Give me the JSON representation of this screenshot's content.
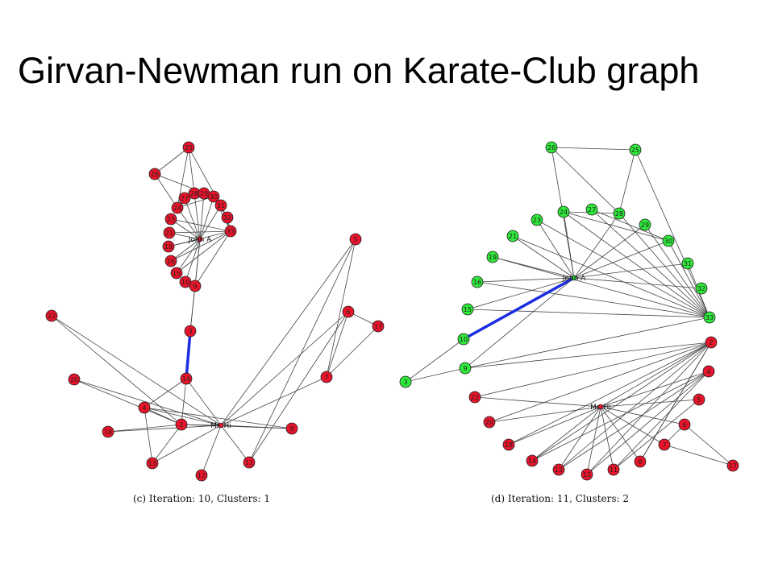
{
  "title": "Girvan-Newman run on Karate-Club graph",
  "colors": {
    "community_a": "#e8142a",
    "community_b": "#2ee83a",
    "highlight_edge": "#1a2ee0",
    "edge": "#444444",
    "outline": "#222222"
  },
  "panels": [
    {
      "caption": "(c) Iteration: 10, Clusters: 1",
      "highlight": [
        "3",
        "14"
      ],
      "hubs": [
        {
          "id": "JohnA",
          "label": "John A",
          "community": "a"
        },
        {
          "id": "MrHi",
          "label": "Mr. Hi",
          "community": "a"
        }
      ],
      "nodes": [
        {
          "id": "25",
          "community": "a"
        },
        {
          "id": "26",
          "community": "a"
        },
        {
          "id": "27",
          "community": "a"
        },
        {
          "id": "28",
          "community": "a"
        },
        {
          "id": "29",
          "community": "a"
        },
        {
          "id": "30",
          "community": "a"
        },
        {
          "id": "31",
          "community": "a"
        },
        {
          "id": "32",
          "community": "a"
        },
        {
          "id": "33",
          "community": "a"
        },
        {
          "id": "24",
          "community": "a"
        },
        {
          "id": "23",
          "community": "a"
        },
        {
          "id": "21",
          "community": "a"
        },
        {
          "id": "19",
          "community": "a"
        },
        {
          "id": "16",
          "community": "a"
        },
        {
          "id": "15",
          "community": "a"
        },
        {
          "id": "10",
          "community": "a"
        },
        {
          "id": "9",
          "community": "a"
        },
        {
          "id": "3",
          "community": "a"
        },
        {
          "id": "14",
          "community": "a"
        },
        {
          "id": "22",
          "community": "a"
        },
        {
          "id": "20",
          "community": "a"
        },
        {
          "id": "4",
          "community": "a"
        },
        {
          "id": "2",
          "community": "a"
        },
        {
          "id": "18",
          "community": "a"
        },
        {
          "id": "13",
          "community": "a"
        },
        {
          "id": "12",
          "community": "a"
        },
        {
          "id": "11",
          "community": "a"
        },
        {
          "id": "8",
          "community": "a"
        },
        {
          "id": "7",
          "community": "a"
        },
        {
          "id": "6",
          "community": "a"
        },
        {
          "id": "17",
          "community": "a"
        },
        {
          "id": "5",
          "community": "a"
        }
      ],
      "edges": [
        [
          "25",
          "26"
        ],
        [
          "25",
          "24"
        ],
        [
          "25",
          "28"
        ],
        [
          "25",
          "32"
        ],
        [
          "26",
          "24"
        ],
        [
          "26",
          "30"
        ],
        [
          "27",
          "30"
        ],
        [
          "27",
          "JohnA"
        ],
        [
          "28",
          "JohnA"
        ],
        [
          "29",
          "31"
        ],
        [
          "29",
          "JohnA"
        ],
        [
          "30",
          "33"
        ],
        [
          "30",
          "JohnA"
        ],
        [
          "31",
          "33"
        ],
        [
          "31",
          "JohnA"
        ],
        [
          "32",
          "33"
        ],
        [
          "24",
          "28"
        ],
        [
          "24",
          "30"
        ],
        [
          "24",
          "JohnA"
        ],
        [
          "23",
          "33"
        ],
        [
          "23",
          "JohnA"
        ],
        [
          "21",
          "33"
        ],
        [
          "21",
          "JohnA"
        ],
        [
          "19",
          "33"
        ],
        [
          "19",
          "JohnA"
        ],
        [
          "16",
          "33"
        ],
        [
          "16",
          "JohnA"
        ],
        [
          "15",
          "33"
        ],
        [
          "15",
          "JohnA"
        ],
        [
          "10",
          "JohnA"
        ],
        [
          "9",
          "JohnA"
        ],
        [
          "9",
          "33"
        ],
        [
          "3",
          "9"
        ],
        [
          "3",
          "JohnA"
        ],
        [
          "3",
          "14"
        ],
        [
          "14",
          "4"
        ],
        [
          "14",
          "2"
        ],
        [
          "14",
          "MrHi"
        ],
        [
          "22",
          "2"
        ],
        [
          "22",
          "MrHi"
        ],
        [
          "20",
          "2"
        ],
        [
          "20",
          "MrHi"
        ],
        [
          "4",
          "2"
        ],
        [
          "4",
          "MrHi"
        ],
        [
          "4",
          "13"
        ],
        [
          "4",
          "8"
        ],
        [
          "2",
          "MrHi"
        ],
        [
          "2",
          "18"
        ],
        [
          "2",
          "13"
        ],
        [
          "2",
          "8"
        ],
        [
          "18",
          "MrHi"
        ],
        [
          "13",
          "MrHi"
        ],
        [
          "12",
          "MrHi"
        ],
        [
          "11",
          "MrHi"
        ],
        [
          "11",
          "5"
        ],
        [
          "11",
          "6"
        ],
        [
          "8",
          "MrHi"
        ],
        [
          "7",
          "MrHi"
        ],
        [
          "7",
          "6"
        ],
        [
          "7",
          "17"
        ],
        [
          "6",
          "17"
        ],
        [
          "6",
          "MrHi"
        ],
        [
          "5",
          "MrHi"
        ],
        [
          "5",
          "7"
        ]
      ]
    },
    {
      "caption": "(d) Iteration: 11, Clusters: 2",
      "highlight": [
        "10",
        "JohnA"
      ],
      "hubs": [
        {
          "id": "JohnA",
          "label": "John A",
          "community": "b"
        },
        {
          "id": "MrHi",
          "label": "Mr. Hi",
          "community": "a"
        }
      ],
      "nodes": [
        {
          "id": "26",
          "community": "b"
        },
        {
          "id": "25",
          "community": "b"
        },
        {
          "id": "24",
          "community": "b"
        },
        {
          "id": "27",
          "community": "b"
        },
        {
          "id": "28",
          "community": "b"
        },
        {
          "id": "29",
          "community": "b"
        },
        {
          "id": "23",
          "community": "b"
        },
        {
          "id": "30",
          "community": "b"
        },
        {
          "id": "21",
          "community": "b"
        },
        {
          "id": "31",
          "community": "b"
        },
        {
          "id": "19",
          "community": "b"
        },
        {
          "id": "32",
          "community": "b"
        },
        {
          "id": "16",
          "community": "b"
        },
        {
          "id": "15",
          "community": "b"
        },
        {
          "id": "33",
          "community": "b"
        },
        {
          "id": "10",
          "community": "b"
        },
        {
          "id": "9",
          "community": "b"
        },
        {
          "id": "3",
          "community": "b"
        },
        {
          "id": "2",
          "community": "a"
        },
        {
          "id": "4",
          "community": "a"
        },
        {
          "id": "22",
          "community": "a"
        },
        {
          "id": "5",
          "community": "a"
        },
        {
          "id": "20",
          "community": "a"
        },
        {
          "id": "6",
          "community": "a"
        },
        {
          "id": "18",
          "community": "a"
        },
        {
          "id": "7",
          "community": "a"
        },
        {
          "id": "14",
          "community": "a"
        },
        {
          "id": "13",
          "community": "a"
        },
        {
          "id": "12",
          "community": "a"
        },
        {
          "id": "11",
          "community": "a"
        },
        {
          "id": "8",
          "community": "a"
        },
        {
          "id": "17",
          "community": "a"
        }
      ],
      "edges": [
        [
          "26",
          "25"
        ],
        [
          "26",
          "28"
        ],
        [
          "26",
          "JohnA"
        ],
        [
          "25",
          "28"
        ],
        [
          "25",
          "33"
        ],
        [
          "24",
          "28"
        ],
        [
          "24",
          "30"
        ],
        [
          "24",
          "33"
        ],
        [
          "24",
          "JohnA"
        ],
        [
          "27",
          "30"
        ],
        [
          "27",
          "33"
        ],
        [
          "28",
          "JohnA"
        ],
        [
          "28",
          "33"
        ],
        [
          "29",
          "33"
        ],
        [
          "29",
          "JohnA"
        ],
        [
          "23",
          "33"
        ],
        [
          "23",
          "JohnA"
        ],
        [
          "30",
          "33"
        ],
        [
          "30",
          "JohnA"
        ],
        [
          "21",
          "33"
        ],
        [
          "21",
          "JohnA"
        ],
        [
          "31",
          "33"
        ],
        [
          "31",
          "JohnA"
        ],
        [
          "19",
          "33"
        ],
        [
          "19",
          "JohnA"
        ],
        [
          "32",
          "JohnA"
        ],
        [
          "16",
          "33"
        ],
        [
          "16",
          "JohnA"
        ],
        [
          "15",
          "33"
        ],
        [
          "15",
          "JohnA"
        ],
        [
          "10",
          "JohnA"
        ],
        [
          "10",
          "3"
        ],
        [
          "9",
          "JohnA"
        ],
        [
          "9",
          "33"
        ],
        [
          "3",
          "9"
        ],
        [
          "9",
          "2"
        ],
        [
          "2",
          "MrHi"
        ],
        [
          "2",
          "22"
        ],
        [
          "2",
          "20"
        ],
        [
          "2",
          "18"
        ],
        [
          "2",
          "14"
        ],
        [
          "2",
          "13"
        ],
        [
          "2",
          "12"
        ],
        [
          "2",
          "8"
        ],
        [
          "4",
          "MrHi"
        ],
        [
          "4",
          "14"
        ],
        [
          "4",
          "11"
        ],
        [
          "4",
          "12"
        ],
        [
          "4",
          "13"
        ],
        [
          "5",
          "MrHi"
        ],
        [
          "5",
          "11"
        ],
        [
          "6",
          "MrHi"
        ],
        [
          "6",
          "17"
        ],
        [
          "6",
          "7"
        ],
        [
          "7",
          "MrHi"
        ],
        [
          "7",
          "17"
        ],
        [
          "22",
          "MrHi"
        ],
        [
          "20",
          "MrHi"
        ],
        [
          "18",
          "MrHi"
        ],
        [
          "14",
          "MrHi"
        ],
        [
          "13",
          "MrHi"
        ],
        [
          "12",
          "MrHi"
        ],
        [
          "11",
          "MrHi"
        ],
        [
          "8",
          "MrHi"
        ],
        [
          "8",
          "2"
        ]
      ]
    }
  ]
}
